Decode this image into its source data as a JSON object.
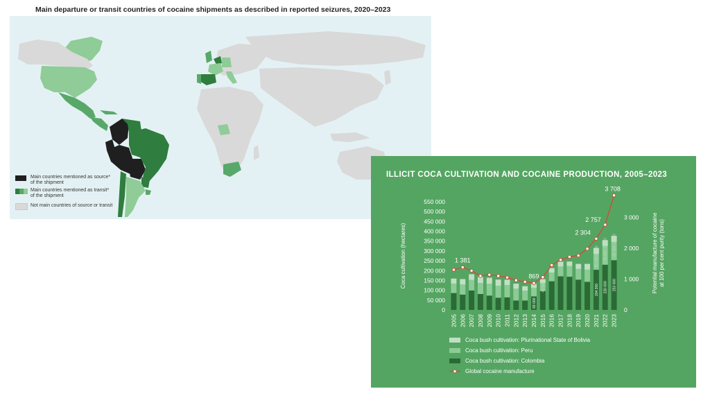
{
  "map": {
    "title": "Main departure or transit countries of cocaine shipments as described in reported seizures, 2020–2023",
    "legend": [
      {
        "label_lines": [
          "Main countries mentioned as source*",
          "of the shipment"
        ],
        "colors": [
          "#1f1f1f"
        ]
      },
      {
        "label_lines": [
          "Main countries mentioned as transit*",
          "of the shipment"
        ],
        "colors": [
          "#2f7d3f",
          "#58a86a",
          "#8fcc97"
        ]
      },
      {
        "label_lines": [
          "Not main countries of source or transit"
        ],
        "colors": [
          "#d9d9d9"
        ]
      }
    ],
    "colors": {
      "ocean": "#e4f1f4",
      "land": "#d9d9d9",
      "source": "#1f1f1f",
      "transit_dark": "#2f7d3f",
      "transit_mid": "#58a86a",
      "transit_light": "#8fcc97"
    }
  },
  "chart_data": {
    "type": "bar",
    "title": "ILLICIT COCA CULTIVATION AND COCAINE PRODUCTION, 2005–2023",
    "ylabel": "Coca cultivation (hectares)",
    "y2label_lines": [
      "Potential manufacture of cocaine",
      "at 100 per cent purity (tons)"
    ],
    "ylim": [
      0,
      550000
    ],
    "y2lim": [
      0,
      3500
    ],
    "yticks": [
      "0",
      "50 000",
      "100 000",
      "150 000",
      "200 000",
      "250 000",
      "300 000",
      "350 000",
      "400 000",
      "450 000",
      "500 000",
      "550 000"
    ],
    "y2ticks": [
      "0",
      "1 000",
      "2 000",
      "3 000"
    ],
    "categories": [
      "2005",
      "2006",
      "2007",
      "2008",
      "2009",
      "2010",
      "2011",
      "2012",
      "2013",
      "2014",
      "2015",
      "2016",
      "2017",
      "2018",
      "2019",
      "2020",
      "2021",
      "2022",
      "2023"
    ],
    "stacked": true,
    "series": [
      {
        "name": "Coca bush cultivation: Colombia",
        "color": "#2a6b35",
        "values": [
          86000,
          78000,
          99000,
          81000,
          73000,
          62000,
          64000,
          48000,
          48000,
          69000,
          96000,
          146000,
          171000,
          169000,
          154000,
          143000,
          204300,
          230000,
          253000
        ]
      },
      {
        "name": "Coca bush cultivation: Peru",
        "color": "#8ccb95",
        "values": [
          48200,
          51400,
          53700,
          56100,
          59900,
          61200,
          62500,
          60400,
          49800,
          42900,
          40300,
          43900,
          49900,
          54100,
          54700,
          61800,
          80700,
          95000,
          92784
        ]
      },
      {
        "name": "Coca bush cultivation: Plurinational State of Bolivia",
        "color": "#c2dfc6",
        "values": [
          25400,
          27500,
          28900,
          30500,
          30900,
          31000,
          27200,
          25300,
          23000,
          20400,
          20200,
          23100,
          24500,
          23100,
          25500,
          29400,
          30500,
          29900,
          31000
        ]
      }
    ],
    "line": {
      "name": "Global cocaine manufacture",
      "color": "#c8503a",
      "values": [
        1300,
        1381,
        1270,
        1100,
        1140,
        1100,
        1050,
        960,
        910,
        869,
        1060,
        1450,
        1620,
        1720,
        1760,
        1980,
        2304,
        2757,
        3708
      ]
    },
    "data_labels": [
      {
        "category": "2006",
        "text": "1 381"
      },
      {
        "category": "2014",
        "text": "869"
      },
      {
        "category": "2021",
        "text": "2 304"
      },
      {
        "category": "2022",
        "text": "2 757"
      },
      {
        "category": "2023",
        "text": "3 708"
      }
    ],
    "bar_labels": [
      {
        "category": "2014",
        "text": "69 000",
        "series": "Colombia"
      },
      {
        "category": "2015",
        "text": "40 300",
        "series": "Peru"
      },
      {
        "category": "2021",
        "text": "204 300",
        "series": "Colombia"
      },
      {
        "category": "2021",
        "text": "80 700",
        "series": "Peru"
      },
      {
        "category": "2021",
        "text": "30 500",
        "series": "Bolivia"
      },
      {
        "category": "2022",
        "text": "230 000",
        "series": "Colombia"
      },
      {
        "category": "2022",
        "text": "95 000",
        "series": "Peru"
      },
      {
        "category": "2022",
        "text": "29 900",
        "series": "Bolivia"
      },
      {
        "category": "2023",
        "text": "253 000",
        "series": "Colombia"
      },
      {
        "category": "2023",
        "text": "92 784",
        "series": "Peru"
      },
      {
        "category": "2023",
        "text": "31 000",
        "series": "Bolivia"
      }
    ],
    "legend_order": [
      "Coca bush cultivation: Plurinational State of Bolivia",
      "Coca bush cultivation: Peru",
      "Coca bush cultivation: Colombia",
      "Global cocaine manufacture"
    ],
    "legend_placement": "bottom-left",
    "grid": false
  }
}
